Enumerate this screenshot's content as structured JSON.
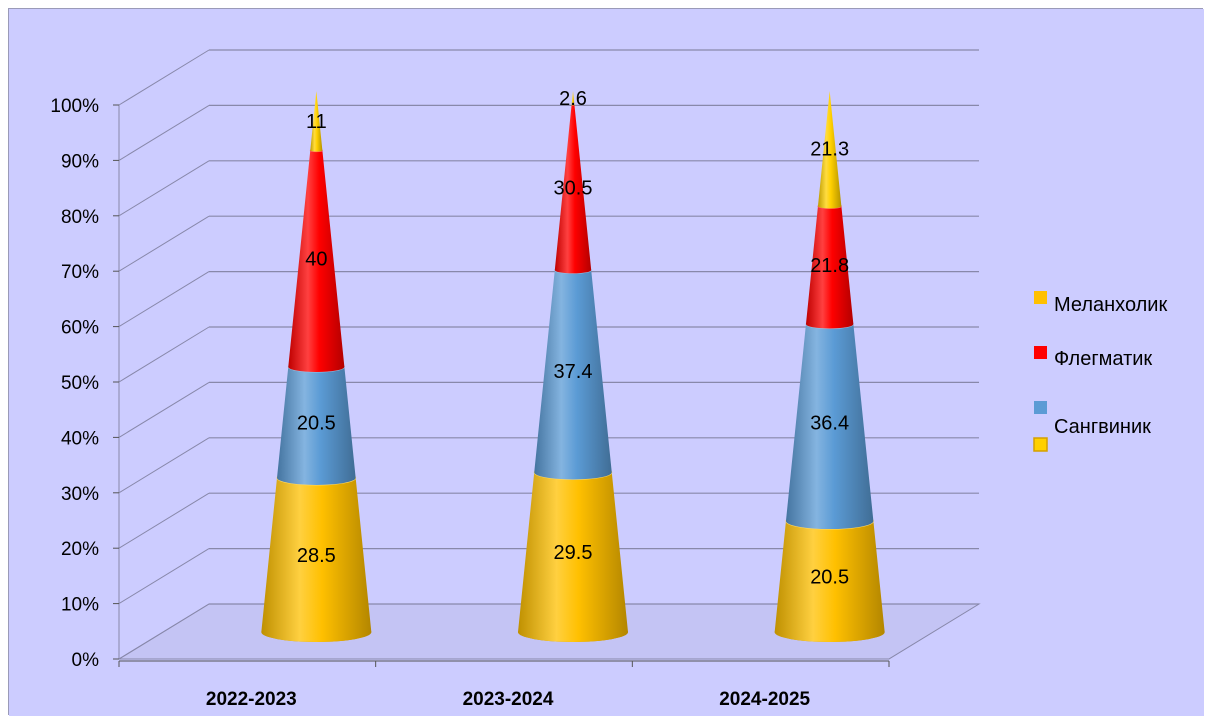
{
  "colors": {
    "background": "#CCCCFF",
    "Сангвиник": "#FFC000",
    "Холерик": "#5B9BD5",
    "Флегматик": "#FF0000",
    "Меланхолик": "#FFD000"
  },
  "legend": {
    "entries": [
      "Меланхолик",
      "Флегматик",
      "",
      "Сангвиник"
    ],
    "colors": [
      "#FFC000",
      "#FF0000",
      "#5B9BD5",
      "#FFD000"
    ]
  },
  "chart_data": {
    "type": "bar",
    "subtype": "3d-stacked-100-percent-cone",
    "title": "",
    "xlabel": "",
    "ylabel": "",
    "categories": [
      "2022-2023",
      "2023-2024",
      "2024-2025"
    ],
    "series": [
      {
        "values": [
          28.5,
          29.5,
          20.5
        ]
      },
      {
        "values": [
          20.5,
          37.4,
          36.4
        ]
      },
      {
        "values": [
          40,
          30.5,
          21.8
        ]
      },
      {
        "values": [
          11,
          2.6,
          21.3
        ]
      }
    ],
    "y_ticks": [
      "0%",
      "10%",
      "20%",
      "30%",
      "40%",
      "50%",
      "60%",
      "70%",
      "80%",
      "90%",
      "100%"
    ],
    "ylim": [
      0,
      100
    ],
    "grid": true,
    "legend_position": "right"
  }
}
